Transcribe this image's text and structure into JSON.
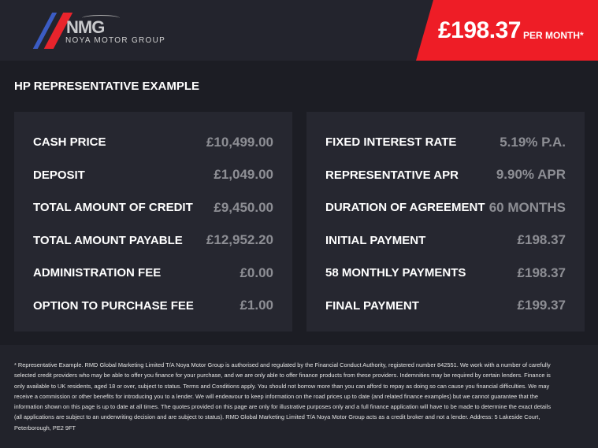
{
  "header": {
    "logo_text": "NMG",
    "logo_subtitle": "NOYA MOTOR GROUP",
    "price": "£198.37",
    "price_suffix": "PER MONTH*",
    "accent_color": "#ee1d26"
  },
  "title": "HP REPRESENTATIVE EXAMPLE",
  "left": [
    {
      "label": "CASH PRICE",
      "value": "£10,499.00"
    },
    {
      "label": "DEPOSIT",
      "value": "£1,049.00"
    },
    {
      "label": "TOTAL AMOUNT OF CREDIT",
      "value": "£9,450.00"
    },
    {
      "label": "TOTAL AMOUNT PAYABLE",
      "value": "£12,952.20"
    },
    {
      "label": "ADMINISTRATION FEE",
      "value": "£0.00"
    },
    {
      "label": "OPTION TO PURCHASE FEE",
      "value": "£1.00"
    }
  ],
  "right": [
    {
      "label": "FIXED INTEREST RATE",
      "value": "5.19% P.A."
    },
    {
      "label": "REPRESENTATIVE APR",
      "value": "9.90% APR"
    },
    {
      "label": "DURATION OF AGREEMENT",
      "value": "60 MONTHS"
    },
    {
      "label": "INITIAL PAYMENT",
      "value": "£198.37"
    },
    {
      "label": "58 MONTHLY PAYMENTS",
      "value": "£198.37"
    },
    {
      "label": "FINAL PAYMENT",
      "value": "£199.37"
    }
  ],
  "footer": "* Representative Example. RMD Global Marketing Limited T/A Noya Motor Group is authorised and regulated by the Financial Conduct Authority, registered number 842551. We work with a number of carefully selected credit providers who may be able to offer you finance for your purchase, and we are only able to offer finance products from these providers. Indemnities may be required by certain lenders. Finance is only available to UK residents, aged 18 or over, subject to status. Terms and Conditions apply. You should not borrow more than you can afford to repay as doing so can cause you financial difficulties. We may receive a commission or other benefits for introducing you to a lender. We will endeavour to keep information on the road prices up to date (and related finance examples) but we cannot guarantee that the information shown on this page is up to date at all times. The quotes provided on this page are only for illustrative purposes only and a full finance application will have to be made to determine the exact details (all applications are subject to an underwriting decision and are subject to status). RMD Global Marketing Limited T/A Noya Motor Group acts as a credit broker and not a lender. Address: 5 Lakeside Court, Peterborough, PE2 9FT"
}
